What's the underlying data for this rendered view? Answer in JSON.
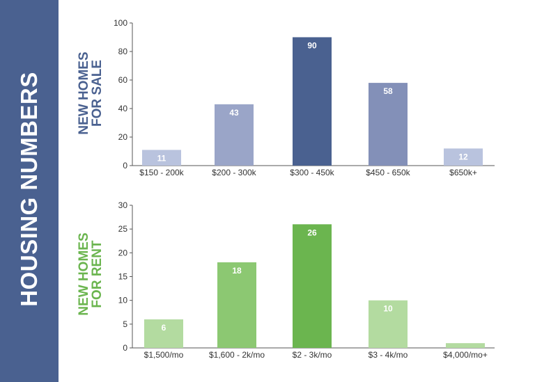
{
  "sidebar": {
    "title": "HOUSING NUMBERS"
  },
  "charts": {
    "sale_label": [
      "NEW HOMES",
      "FOR SALE"
    ],
    "rent_label": [
      "NEW HOMES",
      "FOR RENT"
    ]
  },
  "chart_data": [
    {
      "type": "bar",
      "title": "NEW HOMES FOR SALE",
      "categories": [
        "$150 - 200k",
        "$200 - 300k",
        "$300 - 450k",
        "$450 - 650k",
        "$650k+"
      ],
      "values": [
        11,
        43,
        90,
        58,
        12
      ],
      "ylim": [
        0,
        100
      ],
      "yticks": [
        0,
        20,
        40,
        60,
        80,
        100
      ],
      "colors": [
        "#b9c3de",
        "#9aa5c8",
        "#4a6190",
        "#8390b8",
        "#b9c3de"
      ]
    },
    {
      "type": "bar",
      "title": "NEW HOMES FOR RENT",
      "categories": [
        "$1,500/mo",
        "$1,600 - 2k/mo",
        "$2 - 3k/mo",
        "$3 - 4k/mo",
        "$4,000/mo+"
      ],
      "values": [
        6,
        18,
        26,
        10,
        1
      ],
      "ylim": [
        0,
        30
      ],
      "yticks": [
        0,
        5,
        10,
        15,
        20,
        25,
        30
      ],
      "colors": [
        "#b3dba0",
        "#8cc872",
        "#6bb54f",
        "#b3dba0",
        "#b3dba0"
      ]
    }
  ]
}
